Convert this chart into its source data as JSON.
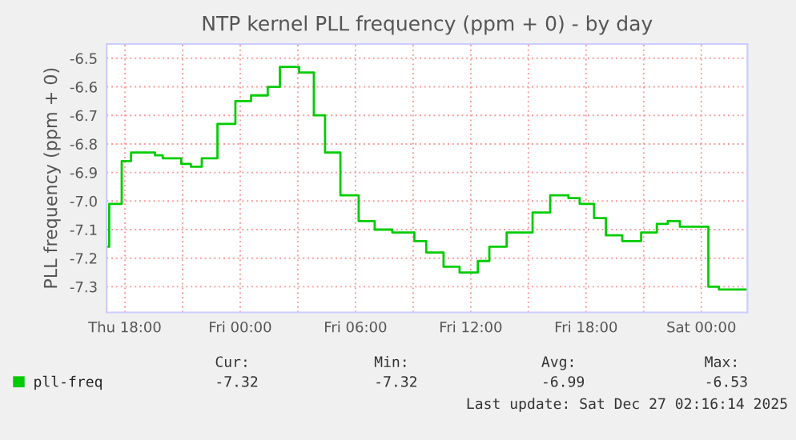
{
  "chart_data": {
    "type": "step",
    "title": "NTP kernel PLL frequency (ppm + 0) - by day",
    "ylabel": "PLL frequency (ppm + 0)",
    "series": [
      {
        "name": "pll-freq",
        "color": "#00cc00",
        "x": [
          "2025-12-25T17:04",
          "2025-12-25T17:11",
          "2025-12-25T17:50",
          "2025-12-25T18:19",
          "2025-12-25T19:34",
          "2025-12-25T19:58",
          "2025-12-25T20:56",
          "2025-12-25T21:26",
          "2025-12-25T22:00",
          "2025-12-25T22:49",
          "2025-12-25T23:45",
          "2025-12-26T00:34",
          "2025-12-26T01:26",
          "2025-12-26T02:04",
          "2025-12-26T03:04",
          "2025-12-26T03:50",
          "2025-12-26T04:25",
          "2025-12-26T05:13",
          "2025-12-26T06:10",
          "2025-12-26T07:00",
          "2025-12-26T07:55",
          "2025-12-26T09:04",
          "2025-12-26T09:41",
          "2025-12-26T10:35",
          "2025-12-26T11:25",
          "2025-12-26T12:22",
          "2025-12-26T12:58",
          "2025-12-26T13:52",
          "2025-12-26T15:13",
          "2025-12-26T16:08",
          "2025-12-26T17:05",
          "2025-12-26T17:40",
          "2025-12-26T18:25",
          "2025-12-26T19:02",
          "2025-12-26T19:53",
          "2025-12-26T20:52",
          "2025-12-26T21:41",
          "2025-12-26T22:15",
          "2025-12-26T22:53",
          "2025-12-26T23:28",
          "2025-12-27T00:22",
          "2025-12-27T00:55",
          "2025-12-27T02:20"
        ],
        "values": [
          -7.16,
          -7.01,
          -6.86,
          -6.83,
          -6.84,
          -6.85,
          -6.87,
          -6.88,
          -6.85,
          -6.73,
          -6.65,
          -6.63,
          -6.6,
          -6.53,
          -6.55,
          -6.7,
          -6.83,
          -6.98,
          -7.07,
          -7.1,
          -7.11,
          -7.14,
          -7.18,
          -7.23,
          -7.25,
          -7.21,
          -7.16,
          -7.11,
          -7.04,
          -6.98,
          -6.99,
          -7.01,
          -7.06,
          -7.12,
          -7.14,
          -7.11,
          -7.08,
          -7.07,
          -7.09,
          -7.09,
          -7.3,
          -7.31,
          -7.31
        ]
      }
    ],
    "xlim": [
      "2025-12-25T17:03",
      "2025-12-27T02:24"
    ],
    "xticks": [
      {
        "value": "2025-12-25T18:00",
        "label": "Thu 18:00"
      },
      {
        "value": "2025-12-25T21:00",
        "label": null
      },
      {
        "value": "2025-12-26T00:00",
        "label": "Fri 00:00"
      },
      {
        "value": "2025-12-26T03:00",
        "label": null
      },
      {
        "value": "2025-12-26T06:00",
        "label": "Fri 06:00"
      },
      {
        "value": "2025-12-26T09:00",
        "label": null
      },
      {
        "value": "2025-12-26T12:00",
        "label": "Fri 12:00"
      },
      {
        "value": "2025-12-26T15:00",
        "label": null
      },
      {
        "value": "2025-12-26T18:00",
        "label": "Fri 18:00"
      },
      {
        "value": "2025-12-26T21:00",
        "label": null
      },
      {
        "value": "2025-12-27T00:00",
        "label": "Sat 00:00"
      }
    ],
    "ylim": [
      -7.39,
      -6.45
    ],
    "yticks": [
      -6.5,
      -6.6,
      -6.7,
      -6.8,
      -6.9,
      {
        "value": -7,
        "label": "-7.0"
      },
      -7.1,
      -7.2,
      -7.3
    ],
    "grid": true,
    "legend": "bottom left",
    "annotations": [
      "Cur:",
      "-7.32",
      "Min:",
      "-7.32",
      "Avg:",
      "-6.99",
      "Max:",
      "-6.53",
      "Last update: Sat Dec 27 02:16:14 2025"
    ]
  }
}
